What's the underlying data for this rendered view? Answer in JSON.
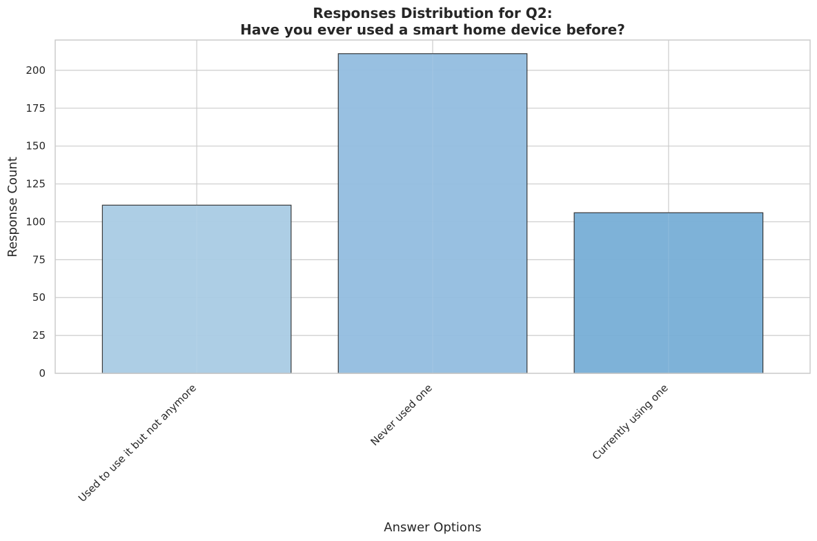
{
  "chart_data": {
    "type": "bar",
    "title_lines": [
      "Responses Distribution for Q2:",
      "Have you ever used a smart home device before?"
    ],
    "xlabel": "Answer Options",
    "ylabel": "Response Count",
    "categories": [
      "Used to use it but not anymore",
      "Never used one",
      "Currently using one"
    ],
    "values": [
      111,
      211,
      106
    ],
    "bar_colors": [
      "#a9cbe4",
      "#92bddf",
      "#77aed6"
    ],
    "ylim": [
      0,
      220
    ],
    "yticks": [
      0,
      25,
      50,
      75,
      100,
      125,
      150,
      175,
      200
    ],
    "grid": true,
    "legend": "none"
  }
}
